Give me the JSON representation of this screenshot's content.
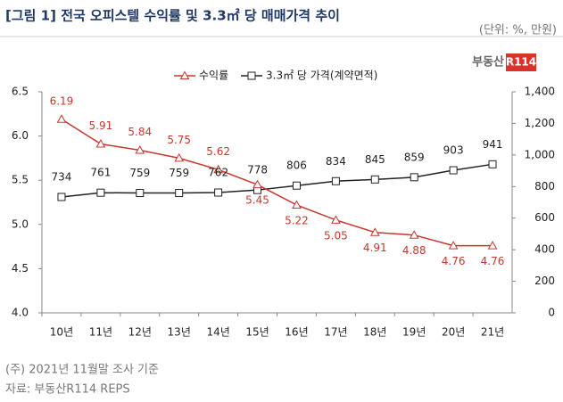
{
  "chart_data": {
    "type": "line",
    "title": "[그림 1] 전국 오피스텔 수익률 및 3.3㎡ 당 매매가격 추이",
    "unit_note": "(단위: %, 만원)",
    "logo": {
      "text": "부동산",
      "badge": "R114"
    },
    "categories": [
      "10년",
      "11년",
      "12년",
      "13년",
      "14년",
      "15년",
      "16년",
      "17년",
      "18년",
      "19년",
      "20년",
      "21년"
    ],
    "series": [
      {
        "name": "수익률",
        "color": "#c8372d",
        "values": [
          6.19,
          5.91,
          5.84,
          5.75,
          5.62,
          5.45,
          5.22,
          5.05,
          4.91,
          4.88,
          4.76,
          4.76
        ]
      },
      {
        "name": "3.3㎡ 당 가격(계약면적)",
        "color": "#222222",
        "axis": "y2",
        "values": [
          734,
          761,
          759,
          759,
          762,
          778,
          806,
          834,
          845,
          859,
          903,
          941
        ]
      }
    ],
    "ylim": [
      4,
      6.5
    ],
    "yticks": [
      {
        "value": 4,
        "label": "4.0"
      },
      4.5,
      {
        "value": 5,
        "label": "5.0"
      },
      5.5,
      {
        "value": 6,
        "label": "6.0"
      },
      6.5
    ],
    "y2lim": [
      0,
      1400
    ],
    "y2ticks": [
      0,
      200,
      400,
      600,
      800,
      {
        "value": 1000,
        "label": "1,000"
      },
      {
        "value": 1200,
        "label": "1,200"
      },
      {
        "value": 1400,
        "label": "1,400"
      }
    ],
    "notes": [
      "(주) 2021년 11월말 조사 기준",
      "자료: 부동산R114 REPS"
    ]
  }
}
